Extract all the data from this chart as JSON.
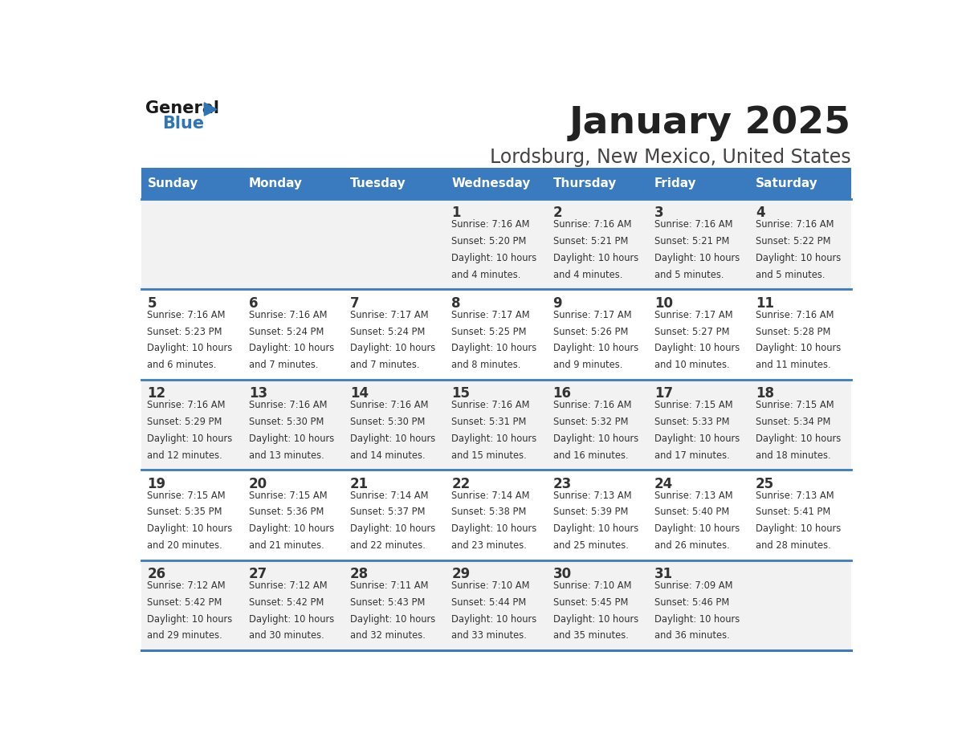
{
  "title": "January 2025",
  "subtitle": "Lordsburg, New Mexico, United States",
  "days_of_week": [
    "Sunday",
    "Monday",
    "Tuesday",
    "Wednesday",
    "Thursday",
    "Friday",
    "Saturday"
  ],
  "header_bg": "#3a7abf",
  "header_text": "#ffffff",
  "row_bg_odd": "#f2f2f2",
  "row_bg_even": "#ffffff",
  "border_color": "#3a7abf",
  "day_number_color": "#333333",
  "cell_text_color": "#333333",
  "title_color": "#222222",
  "subtitle_color": "#444444",
  "calendar_data": [
    [
      null,
      null,
      null,
      {
        "day": 1,
        "sunrise": "7:16 AM",
        "sunset": "5:20 PM",
        "daylight": "10 hours and 4 minutes."
      },
      {
        "day": 2,
        "sunrise": "7:16 AM",
        "sunset": "5:21 PM",
        "daylight": "10 hours and 4 minutes."
      },
      {
        "day": 3,
        "sunrise": "7:16 AM",
        "sunset": "5:21 PM",
        "daylight": "10 hours and 5 minutes."
      },
      {
        "day": 4,
        "sunrise": "7:16 AM",
        "sunset": "5:22 PM",
        "daylight": "10 hours and 5 minutes."
      }
    ],
    [
      {
        "day": 5,
        "sunrise": "7:16 AM",
        "sunset": "5:23 PM",
        "daylight": "10 hours and 6 minutes."
      },
      {
        "day": 6,
        "sunrise": "7:16 AM",
        "sunset": "5:24 PM",
        "daylight": "10 hours and 7 minutes."
      },
      {
        "day": 7,
        "sunrise": "7:17 AM",
        "sunset": "5:24 PM",
        "daylight": "10 hours and 7 minutes."
      },
      {
        "day": 8,
        "sunrise": "7:17 AM",
        "sunset": "5:25 PM",
        "daylight": "10 hours and 8 minutes."
      },
      {
        "day": 9,
        "sunrise": "7:17 AM",
        "sunset": "5:26 PM",
        "daylight": "10 hours and 9 minutes."
      },
      {
        "day": 10,
        "sunrise": "7:17 AM",
        "sunset": "5:27 PM",
        "daylight": "10 hours and 10 minutes."
      },
      {
        "day": 11,
        "sunrise": "7:16 AM",
        "sunset": "5:28 PM",
        "daylight": "10 hours and 11 minutes."
      }
    ],
    [
      {
        "day": 12,
        "sunrise": "7:16 AM",
        "sunset": "5:29 PM",
        "daylight": "10 hours and 12 minutes."
      },
      {
        "day": 13,
        "sunrise": "7:16 AM",
        "sunset": "5:30 PM",
        "daylight": "10 hours and 13 minutes."
      },
      {
        "day": 14,
        "sunrise": "7:16 AM",
        "sunset": "5:30 PM",
        "daylight": "10 hours and 14 minutes."
      },
      {
        "day": 15,
        "sunrise": "7:16 AM",
        "sunset": "5:31 PM",
        "daylight": "10 hours and 15 minutes."
      },
      {
        "day": 16,
        "sunrise": "7:16 AM",
        "sunset": "5:32 PM",
        "daylight": "10 hours and 16 minutes."
      },
      {
        "day": 17,
        "sunrise": "7:15 AM",
        "sunset": "5:33 PM",
        "daylight": "10 hours and 17 minutes."
      },
      {
        "day": 18,
        "sunrise": "7:15 AM",
        "sunset": "5:34 PM",
        "daylight": "10 hours and 18 minutes."
      }
    ],
    [
      {
        "day": 19,
        "sunrise": "7:15 AM",
        "sunset": "5:35 PM",
        "daylight": "10 hours and 20 minutes."
      },
      {
        "day": 20,
        "sunrise": "7:15 AM",
        "sunset": "5:36 PM",
        "daylight": "10 hours and 21 minutes."
      },
      {
        "day": 21,
        "sunrise": "7:14 AM",
        "sunset": "5:37 PM",
        "daylight": "10 hours and 22 minutes."
      },
      {
        "day": 22,
        "sunrise": "7:14 AM",
        "sunset": "5:38 PM",
        "daylight": "10 hours and 23 minutes."
      },
      {
        "day": 23,
        "sunrise": "7:13 AM",
        "sunset": "5:39 PM",
        "daylight": "10 hours and 25 minutes."
      },
      {
        "day": 24,
        "sunrise": "7:13 AM",
        "sunset": "5:40 PM",
        "daylight": "10 hours and 26 minutes."
      },
      {
        "day": 25,
        "sunrise": "7:13 AM",
        "sunset": "5:41 PM",
        "daylight": "10 hours and 28 minutes."
      }
    ],
    [
      {
        "day": 26,
        "sunrise": "7:12 AM",
        "sunset": "5:42 PM",
        "daylight": "10 hours and 29 minutes."
      },
      {
        "day": 27,
        "sunrise": "7:12 AM",
        "sunset": "5:42 PM",
        "daylight": "10 hours and 30 minutes."
      },
      {
        "day": 28,
        "sunrise": "7:11 AM",
        "sunset": "5:43 PM",
        "daylight": "10 hours and 32 minutes."
      },
      {
        "day": 29,
        "sunrise": "7:10 AM",
        "sunset": "5:44 PM",
        "daylight": "10 hours and 33 minutes."
      },
      {
        "day": 30,
        "sunrise": "7:10 AM",
        "sunset": "5:45 PM",
        "daylight": "10 hours and 35 minutes."
      },
      {
        "day": 31,
        "sunrise": "7:09 AM",
        "sunset": "5:46 PM",
        "daylight": "10 hours and 36 minutes."
      },
      null
    ]
  ]
}
